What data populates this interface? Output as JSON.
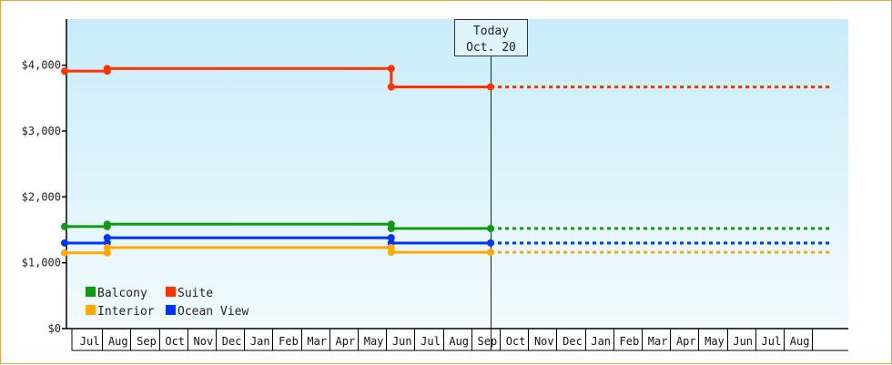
{
  "chart_data": {
    "type": "line",
    "subtype": "step",
    "title": "",
    "xlabel": "",
    "ylabel": "",
    "ylim": [
      0,
      4700
    ],
    "yticks": [
      0,
      1000,
      2000,
      3000,
      4000
    ],
    "ytick_labels": [
      "$0",
      "$1,000",
      "$2,000",
      "$3,000",
      "$4,000"
    ],
    "grid": false,
    "legend_position": "bottom-left",
    "months": [
      "Jul",
      "Aug",
      "Sep",
      "Oct",
      "Nov",
      "Dec",
      "Jan",
      "Feb",
      "Mar",
      "Apr",
      "May",
      "Jun",
      "Jul",
      "Aug",
      "Sep",
      "Oct",
      "Nov",
      "Dec",
      "Jan",
      "Feb",
      "Mar",
      "Apr",
      "May",
      "Jun",
      "Jul",
      "Aug"
    ],
    "today_index": 15.0,
    "today_label_line1": "Today",
    "today_label_line2": "Oct. 20",
    "forecast_end_index": 27.0,
    "series": [
      {
        "name": "Suite",
        "color": "#ff3300",
        "points": [
          [
            0.0,
            3910
          ],
          [
            1.5,
            3910
          ],
          [
            1.5,
            3950
          ],
          [
            11.5,
            3950
          ],
          [
            11.5,
            3670
          ],
          [
            15.0,
            3670
          ]
        ],
        "markers": [
          [
            0.0,
            3910
          ],
          [
            1.5,
            3910
          ],
          [
            1.5,
            3950
          ],
          [
            11.5,
            3950
          ],
          [
            11.5,
            3670
          ],
          [
            15.0,
            3670
          ]
        ]
      },
      {
        "name": "Balcony",
        "color": "#119911",
        "points": [
          [
            0.0,
            1550
          ],
          [
            1.5,
            1550
          ],
          [
            1.5,
            1585
          ],
          [
            11.5,
            1585
          ],
          [
            11.5,
            1520
          ],
          [
            15.0,
            1520
          ]
        ],
        "markers": [
          [
            0.0,
            1550
          ],
          [
            1.5,
            1550
          ],
          [
            1.5,
            1585
          ],
          [
            11.5,
            1585
          ],
          [
            11.5,
            1520
          ],
          [
            15.0,
            1520
          ]
        ]
      },
      {
        "name": "Ocean View",
        "color": "#0033ff",
        "points": [
          [
            0.0,
            1300
          ],
          [
            1.5,
            1300
          ],
          [
            1.5,
            1380
          ],
          [
            11.5,
            1380
          ],
          [
            11.5,
            1300
          ],
          [
            15.0,
            1300
          ]
        ],
        "markers": [
          [
            0.0,
            1300
          ],
          [
            1.5,
            1300
          ],
          [
            1.5,
            1380
          ],
          [
            11.5,
            1380
          ],
          [
            11.5,
            1300
          ],
          [
            15.0,
            1300
          ]
        ]
      },
      {
        "name": "Interior",
        "color": "#ffaa00",
        "points": [
          [
            0.0,
            1150
          ],
          [
            1.5,
            1150
          ],
          [
            1.5,
            1230
          ],
          [
            11.5,
            1230
          ],
          [
            11.5,
            1160
          ],
          [
            15.0,
            1160
          ]
        ],
        "markers": [
          [
            0.0,
            1150
          ],
          [
            1.5,
            1150
          ],
          [
            1.5,
            1230
          ],
          [
            11.5,
            1230
          ],
          [
            11.5,
            1160
          ],
          [
            15.0,
            1160
          ]
        ]
      }
    ],
    "legend": [
      {
        "name": "Balcony",
        "color": "#119911"
      },
      {
        "name": "Suite",
        "color": "#ff3300"
      },
      {
        "name": "Interior",
        "color": "#ffaa00"
      },
      {
        "name": "Ocean View",
        "color": "#0033ff"
      }
    ]
  }
}
